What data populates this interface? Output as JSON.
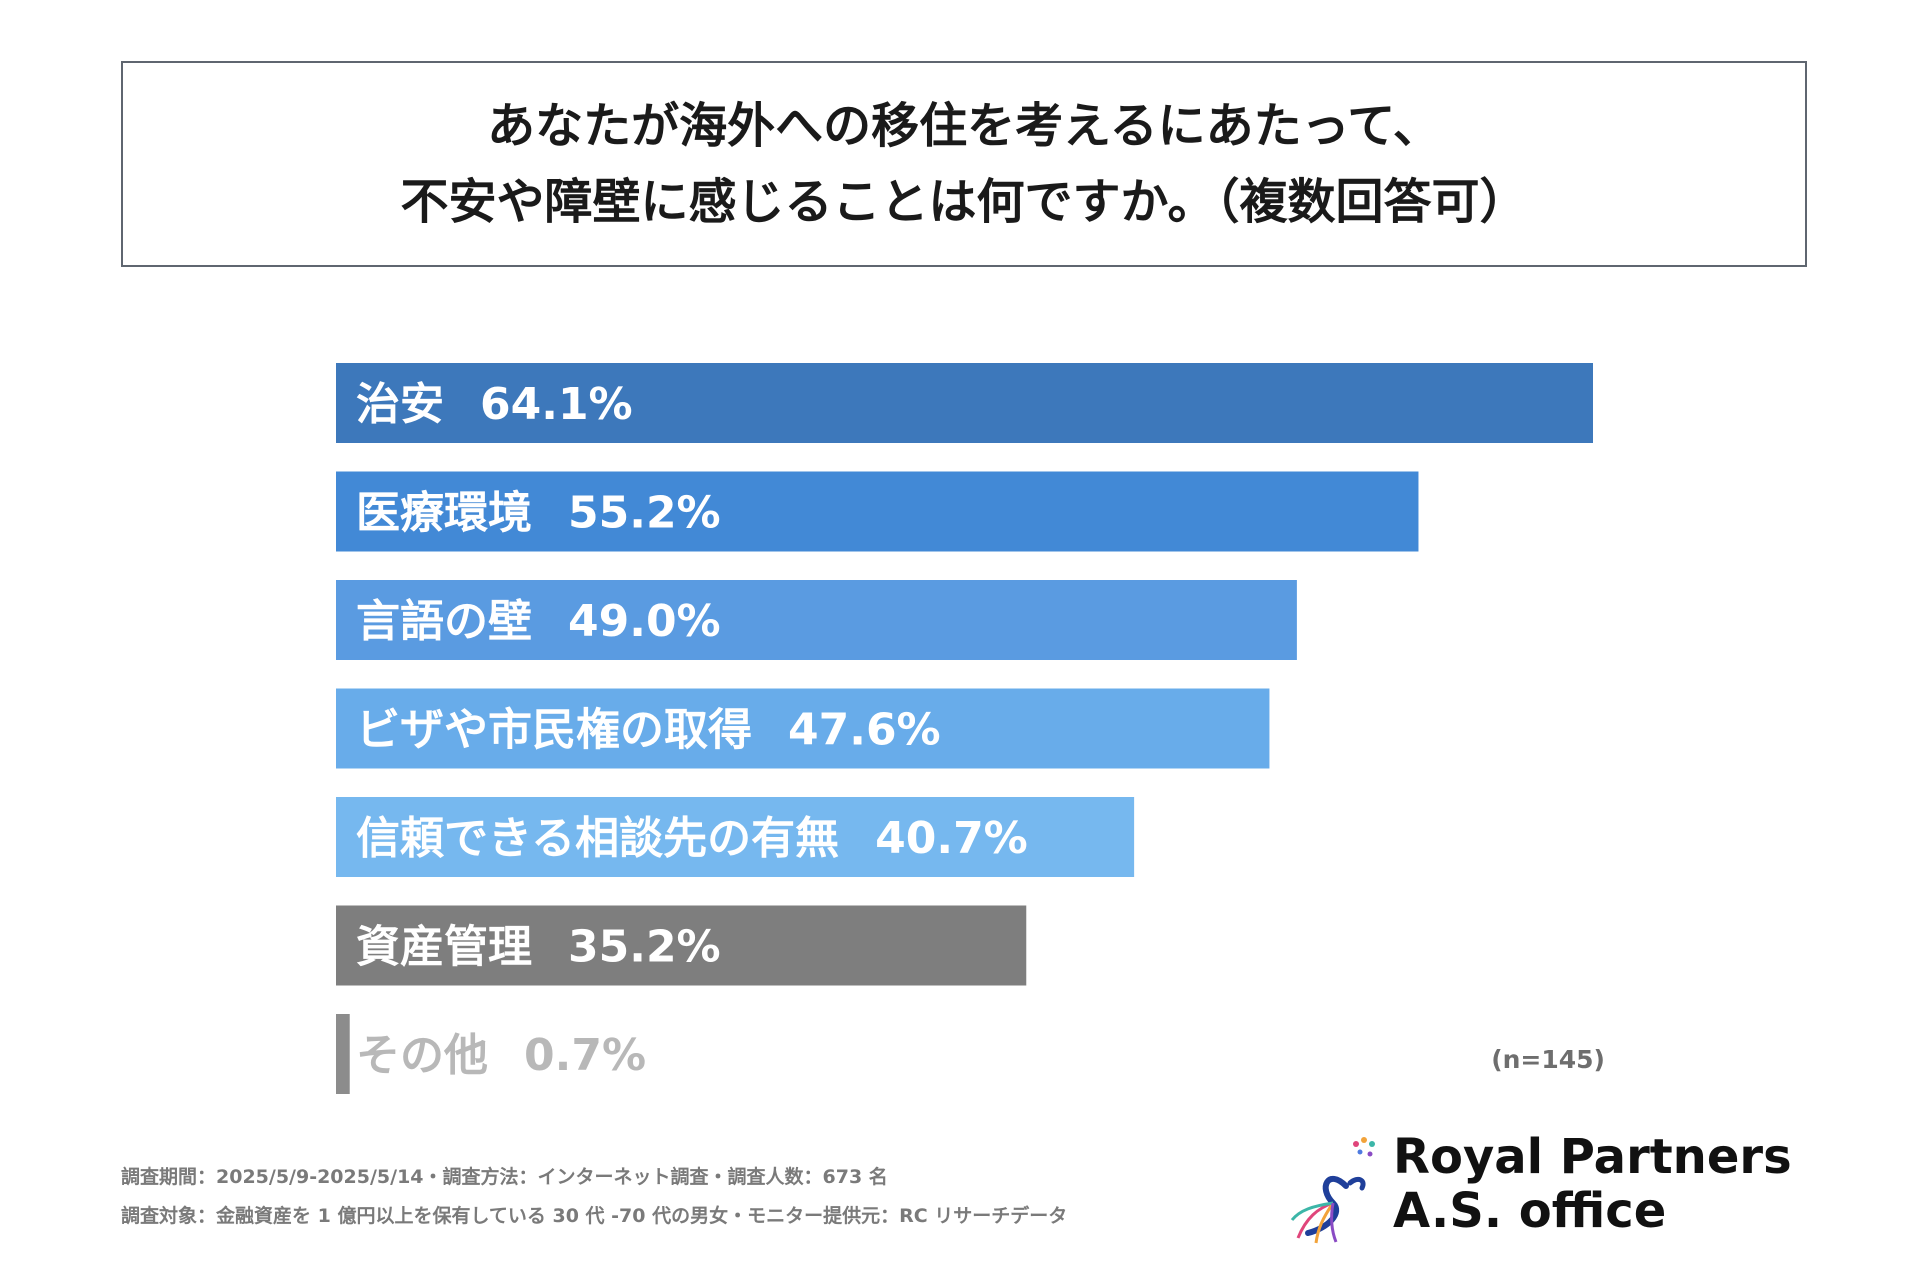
{
  "title": {
    "line1": "あなたが海外への移住を考えるにあたって、",
    "line2": "不安や障壁に感じることは何ですか。（複数回答可）"
  },
  "chart_data": {
    "type": "bar",
    "orientation": "horizontal",
    "title": "あなたが海外への移住を考えるにあたって、不安や障壁に感じることは何ですか。（複数回答可）",
    "categories": [
      "治安",
      "医療環境",
      "言語の壁",
      "ビザや市民権の取得",
      "信頼できる相談先の有無",
      "資産管理",
      "その他"
    ],
    "values": [
      64.1,
      55.2,
      49.0,
      47.6,
      40.7,
      35.2,
      0.7
    ],
    "value_labels": [
      "64.1%",
      "55.2%",
      "49.0%",
      "47.6%",
      "40.7%",
      "35.2%",
      "0.7%"
    ],
    "colors": [
      "#3d78bb",
      "#4289d6",
      "#5a9be1",
      "#68acea",
      "#76b8ef",
      "#7e7e7e",
      "#8c8c8c"
    ],
    "xlim": [
      0,
      64.1
    ],
    "unit": "%"
  },
  "sample_size": "(n=145)",
  "footnotes": {
    "line1": "調査期間：2025/5/9-2025/5/14・調査方法：インターネット調査・調査人数：673 名",
    "line2": "調査対象：金融資産を 1 億円以上を保有している 30 代 -70 代の男女・モニター提供元：RC リサーチデータ"
  },
  "logo": {
    "line1": "Royal Partners",
    "line2": "A.S. office"
  }
}
